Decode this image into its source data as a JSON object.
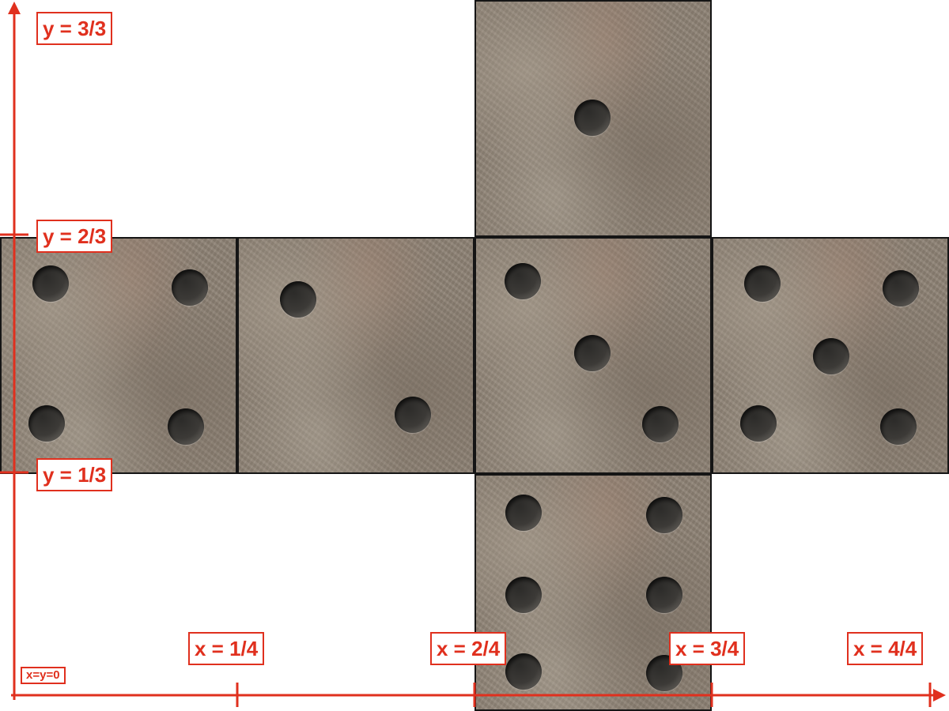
{
  "diagram": {
    "origin_label": "x=y=0",
    "x_labels": [
      "x = 1/4",
      "x = 2/4",
      "x = 3/4",
      "x = 4/4"
    ],
    "y_labels": [
      "y = 1/3",
      "y = 2/3",
      "y = 3/3"
    ],
    "faces": [
      {
        "name": "top",
        "pips": 1
      },
      {
        "name": "left",
        "pips": 4
      },
      {
        "name": "center-left",
        "pips": 2
      },
      {
        "name": "center",
        "pips": 3
      },
      {
        "name": "right",
        "pips": 5
      },
      {
        "name": "bottom",
        "pips": 6
      }
    ],
    "colors": {
      "axis": "#e0301e",
      "face_border": "#151515",
      "background": "#ffffff"
    }
  }
}
